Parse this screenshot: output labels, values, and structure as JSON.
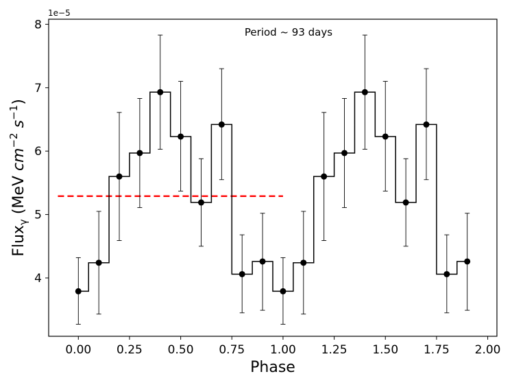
{
  "chart_data": {
    "type": "line",
    "xlabel": "Phase",
    "ylabel_main": "Flux",
    "ylabel_sub": "γ",
    "ylabel_unit_prefix": " (MeV ",
    "ylabel_cm": "cm",
    "ylabel_cm_exp": "−2",
    "ylabel_s": " s",
    "ylabel_s_exp": "−1",
    "ylabel_unit_suffix": ")",
    "y_offset_label": "1e−5",
    "annotation": "Period  ~  93 days",
    "xlim": [
      -0.145,
      2.045
    ],
    "ylim": [
      3.08,
      8.08
    ],
    "x_ticks": [
      0.0,
      0.25,
      0.5,
      0.75,
      1.0,
      1.25,
      1.5,
      1.75,
      2.0
    ],
    "x_tick_labels": [
      "0.00",
      "0.25",
      "0.50",
      "0.75",
      "1.00",
      "1.25",
      "1.50",
      "1.75",
      "2.00"
    ],
    "y_ticks": [
      4,
      5,
      6,
      7,
      8
    ],
    "y_tick_labels": [
      "4",
      "5",
      "6",
      "7",
      "8"
    ],
    "grid": false,
    "mean_line": {
      "y": 5.29,
      "x_start": -0.1,
      "x_end": 1.0,
      "color": "#ff0000",
      "style": "dashed"
    },
    "series": [
      {
        "x": [
          0.0,
          0.1,
          0.2,
          0.3,
          0.4,
          0.5,
          0.6,
          0.7,
          0.8,
          0.9,
          1.0,
          1.1,
          1.2,
          1.3,
          1.4,
          1.5,
          1.6,
          1.7,
          1.8,
          1.9
        ],
        "y": [
          3.79,
          4.24,
          5.6,
          5.97,
          6.93,
          6.23,
          5.19,
          6.42,
          4.06,
          4.26,
          3.79,
          4.24,
          5.6,
          5.97,
          6.93,
          6.23,
          5.19,
          6.42,
          4.06,
          4.26
        ],
        "err_low": [
          3.27,
          3.43,
          4.59,
          5.11,
          6.03,
          5.37,
          4.5,
          5.55,
          3.45,
          3.49,
          3.27,
          3.43,
          4.59,
          5.11,
          6.03,
          5.37,
          4.5,
          5.55,
          3.45,
          3.49
        ],
        "err_high": [
          4.32,
          5.05,
          6.61,
          6.83,
          7.83,
          7.1,
          5.88,
          7.3,
          4.68,
          5.02,
          4.32,
          5.05,
          6.61,
          6.83,
          7.83,
          7.1,
          5.88,
          7.3,
          4.68,
          5.02
        ],
        "color": "#000000",
        "drawstyle": "steps-mid",
        "marker": "circle"
      }
    ]
  }
}
